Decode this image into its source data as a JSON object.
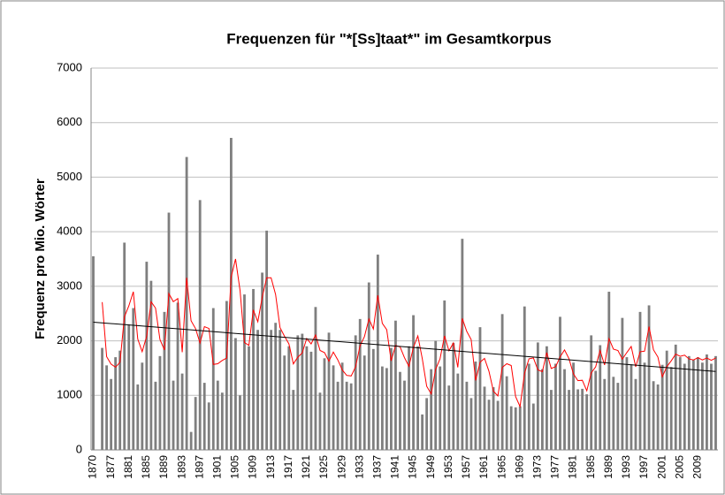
{
  "chart_data": {
    "type": "bar",
    "title": "Frequenzen für \"*[Ss]taat*\" im Gesamtkorpus",
    "y_label": "Frequenz pro Mio. Wörter",
    "categories": [
      "1870",
      null,
      null,
      null,
      "1877",
      null,
      null,
      null,
      "1881",
      null,
      null,
      null,
      "1885",
      null,
      null,
      null,
      "1889",
      null,
      null,
      null,
      "1893",
      null,
      null,
      null,
      "1897",
      null,
      null,
      null,
      "1901",
      null,
      null,
      null,
      "1905",
      null,
      null,
      null,
      "1909",
      null,
      null,
      null,
      "1913",
      null,
      null,
      null,
      "1917",
      null,
      null,
      null,
      "1921",
      null,
      null,
      null,
      "1925",
      null,
      null,
      null,
      "1929",
      null,
      null,
      null,
      "1933",
      null,
      null,
      null,
      "1937",
      null,
      null,
      null,
      "1941",
      null,
      null,
      null,
      "1945",
      null,
      null,
      null,
      "1949",
      null,
      null,
      null,
      "1953",
      null,
      null,
      null,
      "1957",
      null,
      null,
      null,
      "1961",
      null,
      null,
      null,
      "1965",
      null,
      null,
      null,
      "1969",
      null,
      null,
      null,
      "1973",
      null,
      null,
      null,
      "1977",
      null,
      null,
      null,
      "1981",
      null,
      null,
      null,
      "1985",
      null,
      null,
      null,
      "1989",
      null,
      null,
      null,
      "1993",
      null,
      null,
      null,
      "1997",
      null,
      null,
      null,
      "2001",
      null,
      null,
      null,
      "2005",
      null,
      null,
      null,
      "2009",
      null,
      null,
      null,
      null
    ],
    "values": [
      3550,
      null,
      1870,
      1550,
      1300,
      1700,
      1820,
      3800,
      2300,
      2600,
      1200,
      1600,
      3450,
      3100,
      1250,
      1720,
      2530,
      4350,
      1270,
      2700,
      1400,
      5370,
      330,
      970,
      4580,
      1230,
      870,
      2600,
      1270,
      1050,
      2730,
      5720,
      2050,
      1000,
      2850,
      1900,
      2950,
      2200,
      3250,
      4020,
      2200,
      2330,
      2200,
      1730,
      1900,
      1100,
      2100,
      2130,
      1900,
      1800,
      2620,
      1050,
      1680,
      2150,
      1550,
      1250,
      1600,
      1250,
      1220,
      2100,
      2400,
      1730,
      3070,
      1850,
      3580,
      1530,
      1500,
      1870,
      2370,
      1430,
      1270,
      1900,
      2470,
      1900,
      650,
      950,
      1480,
      2000,
      1530,
      2740,
      1180,
      1960,
      1400,
      3870,
      1250,
      950,
      1620,
      2250,
      1160,
      920,
      1150,
      900,
      2490,
      1350,
      800,
      780,
      800,
      2630,
      1580,
      850,
      1970,
      1480,
      1900,
      1100,
      1580,
      2440,
      1480,
      1100,
      1600,
      1110,
      1120,
      1020,
      2100,
      1450,
      1920,
      1300,
      2900,
      1340,
      1230,
      2420,
      1700,
      1570,
      1300,
      2530,
      1600,
      2650,
      1260,
      1200,
      1560,
      1820,
      1520,
      1930,
      1700,
      1580,
      1720,
      1650,
      1700,
      1600,
      1750,
      1580,
      1720
    ],
    "color": "#7f7f7f",
    "moving_average": {
      "period": 3,
      "color": "#ff0000"
    },
    "linear_trend": {
      "color": "#000000"
    },
    "ylim": [
      0,
      7000
    ],
    "yticks": [
      0,
      1000,
      2000,
      3000,
      4000,
      5000,
      6000,
      7000
    ],
    "grid": true
  }
}
